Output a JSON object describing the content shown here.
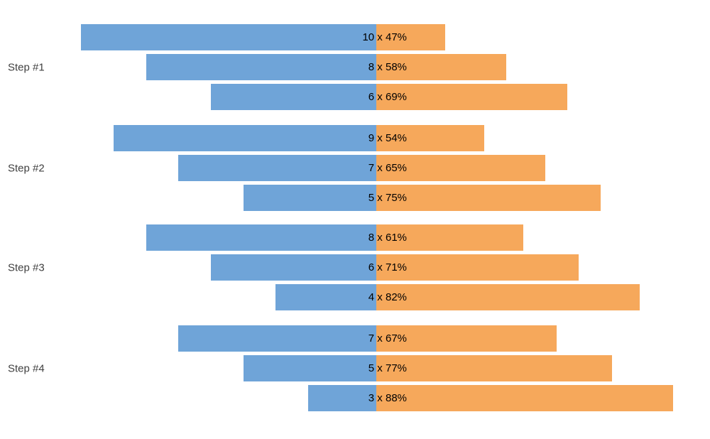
{
  "chart_data": {
    "type": "bar",
    "variant": "diverging-grouped-bars",
    "title": "",
    "xlabel": "",
    "ylabel": "",
    "legend": "none",
    "grid": false,
    "axes_visible": false,
    "label_format": "{count} x {percent}%",
    "series": [
      {
        "name": "count",
        "direction": "left",
        "color": "#6FA4D8"
      },
      {
        "name": "percent",
        "direction": "right",
        "color": "#F6A85B"
      }
    ],
    "colors": {
      "count_bar": "#6FA4D8",
      "percent_bar": "#F6A85B",
      "bar_label": "#000000",
      "group_label": "#404040",
      "background": "#FFFFFF"
    },
    "groups": [
      {
        "label": "Step #1",
        "bars": [
          {
            "count": 10,
            "percent": 47,
            "label": "10 x 47%"
          },
          {
            "count": 8,
            "percent": 58,
            "label": "8 x 58%"
          },
          {
            "count": 6,
            "percent": 69,
            "label": "6 x 69%"
          }
        ]
      },
      {
        "label": "Step #2",
        "bars": [
          {
            "count": 9,
            "percent": 54,
            "label": "9 x 54%"
          },
          {
            "count": 7,
            "percent": 65,
            "label": "7 x 65%"
          },
          {
            "count": 5,
            "percent": 75,
            "label": "5 x 75%"
          }
        ]
      },
      {
        "label": "Step #3",
        "bars": [
          {
            "count": 8,
            "percent": 61,
            "label": "8 x 61%"
          },
          {
            "count": 6,
            "percent": 71,
            "label": "6 x 71%"
          },
          {
            "count": 4,
            "percent": 82,
            "label": "4 x 82%"
          }
        ]
      },
      {
        "label": "Step #4",
        "bars": [
          {
            "count": 7,
            "percent": 67,
            "label": "7 x 67%"
          },
          {
            "count": 5,
            "percent": 77,
            "label": "5 x 77%"
          },
          {
            "count": 3,
            "percent": 88,
            "label": "3 x 88%"
          }
        ]
      }
    ]
  }
}
